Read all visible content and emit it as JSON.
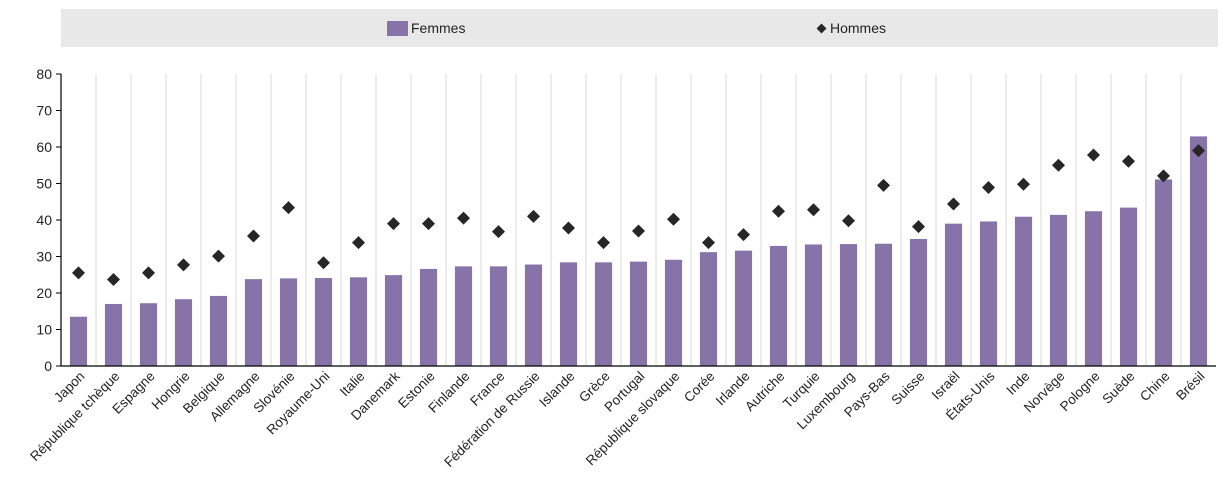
{
  "legend": {
    "femmes_label": "Femmes",
    "hommes_label": "Hommes"
  },
  "colors": {
    "bar": "#8773a8",
    "marker": "#262626",
    "legend_bg": "#e8e8e9",
    "grid": "#d0d0d0"
  },
  "chart_data": {
    "type": "bar",
    "title": "",
    "xlabel": "",
    "ylabel": "",
    "ylim": [
      0,
      80
    ],
    "yticks": [
      0,
      10,
      20,
      30,
      40,
      50,
      60,
      70,
      80
    ],
    "legend_position": "top",
    "categories": [
      "Japon",
      "République tchèque",
      "Espagne",
      "Hongrie",
      "Belgique",
      "Allemagne",
      "Slovénie",
      "Royaume-Uni",
      "Italie",
      "Danemark",
      "Estonie",
      "Finlande",
      "France",
      "Fédération de Russie",
      "Islande",
      "Grèce",
      "Portugal",
      "République slovaque",
      "Corée",
      "Irlande",
      "Autriche",
      "Turquie",
      "Luxembourg",
      "Pays-Bas",
      "Suisse",
      "Israël",
      "États-Unis",
      "Inde",
      "Norvège",
      "Pologne",
      "Suède",
      "Chine",
      "Brésil"
    ],
    "series": [
      {
        "name": "Femmes",
        "kind": "bar",
        "values": [
          13.5,
          17.0,
          17.2,
          18.3,
          19.2,
          23.8,
          24.0,
          24.1,
          24.3,
          24.9,
          26.6,
          27.3,
          27.3,
          27.8,
          28.4,
          28.4,
          28.6,
          29.1,
          31.2,
          31.6,
          32.9,
          33.3,
          33.4,
          33.5,
          34.8,
          39.0,
          39.6,
          40.9,
          41.4,
          42.4,
          43.4,
          51.1,
          62.9
        ]
      },
      {
        "name": "Hommes",
        "kind": "diamond",
        "values": [
          25.5,
          23.7,
          25.5,
          27.7,
          30.1,
          35.6,
          43.4,
          28.3,
          33.8,
          39.0,
          39.0,
          40.5,
          36.8,
          41.0,
          37.8,
          33.8,
          37.0,
          40.2,
          33.8,
          36.0,
          42.4,
          42.8,
          39.8,
          49.5,
          38.2,
          44.4,
          48.9,
          49.8,
          55.0,
          57.8,
          56.1,
          52.1,
          59.0
        ]
      }
    ]
  }
}
